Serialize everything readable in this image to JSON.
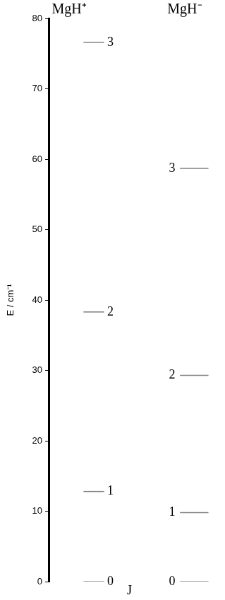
{
  "chart_data": {
    "type": "energy_levels",
    "ylabel": "E / cm⁻¹",
    "annotation": "J",
    "ylim": [
      0,
      80
    ],
    "yticks": [
      0,
      10,
      20,
      30,
      40,
      50,
      60,
      70,
      80
    ],
    "grid": false,
    "tick_labels": "y",
    "series": [
      {
        "name": "MgH⁺",
        "color": "#808080",
        "values": [
          0,
          12.8,
          38.3,
          76.6
        ],
        "J": [
          0,
          1,
          2,
          3
        ]
      },
      {
        "name": "MgH⁻",
        "color": "#808080",
        "values": [
          0,
          9.8,
          29.3,
          58.7
        ],
        "J": [
          0,
          1,
          2,
          3
        ]
      }
    ]
  }
}
